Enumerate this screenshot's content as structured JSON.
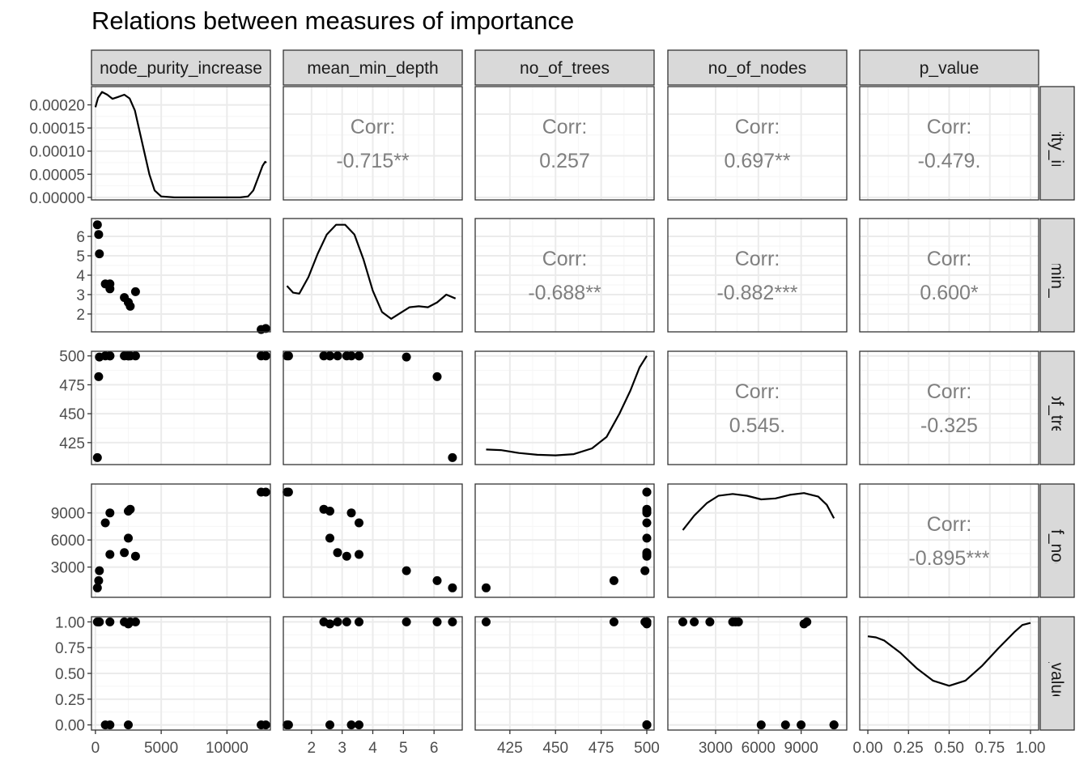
{
  "title": "Relations between measures of importance",
  "chart_data": {
    "type": "scatter",
    "variables": [
      "node_purity_increase",
      "mean_min_depth",
      "no_of_trees",
      "no_of_nodes",
      "p_value"
    ],
    "row_strip_labels": [
      "e_purity_incre",
      "ean_min_dep",
      "no_of_trees",
      "no_of_nodes",
      "p_value"
    ],
    "axes": {
      "node_purity_increase": {
        "range": [
          -300,
          13300
        ],
        "ticks": [
          0,
          5000,
          10000
        ],
        "tick_labels": [
          "0",
          "5000",
          "10000"
        ]
      },
      "mean_min_depth": {
        "range": [
          1.08,
          6.92
        ],
        "ticks": [
          2,
          3,
          4,
          5,
          6
        ],
        "tick_labels": [
          "2",
          "3",
          "4",
          "5",
          "6"
        ]
      },
      "no_of_trees": {
        "range": [
          406,
          504
        ],
        "ticks": [
          425,
          450,
          475,
          500
        ],
        "tick_labels": [
          "425",
          "450",
          "475",
          "500"
        ]
      },
      "no_of_nodes": {
        "range": [
          -350,
          12200
        ],
        "ticks": [
          3000,
          6000,
          9000
        ],
        "tick_labels": [
          "3000",
          "6000",
          "9000"
        ]
      },
      "p_value": {
        "range": [
          -0.05,
          1.05
        ],
        "ticks": [
          0,
          0.25,
          0.5,
          0.75,
          1.0
        ],
        "tick_labels": [
          "0.00",
          "0.25",
          "0.50",
          "0.75",
          "1.00"
        ]
      }
    },
    "density_axis": {
      "range": [
        -5.5e-06,
        0.0002395
      ],
      "ticks": [
        0,
        5e-05,
        0.0001,
        0.00015,
        0.0002
      ],
      "tick_labels": [
        "0.00000",
        "0.00005",
        "0.00010",
        "0.00015",
        "0.00020"
      ]
    },
    "observations": [
      {
        "node_purity_increase": 12600,
        "mean_min_depth": 1.2,
        "no_of_trees": 500,
        "no_of_nodes": 11300,
        "p_value": 0.0
      },
      {
        "node_purity_increase": 12950,
        "mean_min_depth": 1.25,
        "no_of_trees": 500,
        "no_of_nodes": 11300,
        "p_value": 0.0
      },
      {
        "node_purity_increase": 2650,
        "mean_min_depth": 2.4,
        "no_of_trees": 500,
        "no_of_nodes": 9400,
        "p_value": 1.0
      },
      {
        "node_purity_increase": 2500,
        "mean_min_depth": 2.6,
        "no_of_trees": 500,
        "no_of_nodes": 9200,
        "p_value": 0.98
      },
      {
        "node_purity_increase": 2500,
        "mean_min_depth": 2.6,
        "no_of_trees": 500,
        "no_of_nodes": 6200,
        "p_value": 0.0
      },
      {
        "node_purity_increase": 1100,
        "mean_min_depth": 3.3,
        "no_of_trees": 500,
        "no_of_nodes": 9000,
        "p_value": 0.0
      },
      {
        "node_purity_increase": 750,
        "mean_min_depth": 3.55,
        "no_of_trees": 500,
        "no_of_nodes": 7900,
        "p_value": 0.0
      },
      {
        "node_purity_increase": 2200,
        "mean_min_depth": 2.85,
        "no_of_trees": 500,
        "no_of_nodes": 4600,
        "p_value": 1.0
      },
      {
        "node_purity_increase": 3050,
        "mean_min_depth": 3.15,
        "no_of_trees": 500,
        "no_of_nodes": 4200,
        "p_value": 1.0
      },
      {
        "node_purity_increase": 1100,
        "mean_min_depth": 3.55,
        "no_of_trees": 500,
        "no_of_nodes": 4400,
        "p_value": 1.0
      },
      {
        "node_purity_increase": 300,
        "mean_min_depth": 5.1,
        "no_of_trees": 499,
        "no_of_nodes": 2600,
        "p_value": 1.0
      },
      {
        "node_purity_increase": 250,
        "mean_min_depth": 6.1,
        "no_of_trees": 482,
        "no_of_nodes": 1500,
        "p_value": 1.0
      },
      {
        "node_purity_increase": 150,
        "mean_min_depth": 6.6,
        "no_of_trees": 412,
        "no_of_nodes": 700,
        "p_value": 1.0
      }
    ],
    "densities": {
      "node_purity_increase": [
        [
          0,
          0.000195
        ],
        [
          200,
          0.000215
        ],
        [
          500,
          0.000228
        ],
        [
          900,
          0.000222
        ],
        [
          1300,
          0.000213
        ],
        [
          1700,
          0.000217
        ],
        [
          2200,
          0.000222
        ],
        [
          2600,
          0.000214
        ],
        [
          3000,
          0.000188
        ],
        [
          3300,
          0.00015
        ],
        [
          3700,
          0.0001
        ],
        [
          4100,
          5e-05
        ],
        [
          4500,
          1.5e-05
        ],
        [
          5000,
          2e-06
        ],
        [
          6000,
          0.0
        ],
        [
          11000,
          0.0
        ],
        [
          11600,
          2e-06
        ],
        [
          12000,
          1.5e-05
        ],
        [
          12400,
          4.5e-05
        ],
        [
          12700,
          6.8e-05
        ],
        [
          12900,
          7.7e-05
        ],
        [
          13000,
          7.5e-05
        ]
      ],
      "mean_min_depth": [
        [
          1.2,
          3.45
        ],
        [
          1.4,
          3.1
        ],
        [
          1.6,
          3.05
        ],
        [
          1.9,
          3.9
        ],
        [
          2.2,
          5.1
        ],
        [
          2.5,
          6.1
        ],
        [
          2.8,
          6.6
        ],
        [
          3.1,
          6.6
        ],
        [
          3.4,
          6.1
        ],
        [
          3.7,
          4.8
        ],
        [
          4.0,
          3.2
        ],
        [
          4.3,
          2.1
        ],
        [
          4.6,
          1.75
        ],
        [
          4.9,
          2.05
        ],
        [
          5.2,
          2.35
        ],
        [
          5.5,
          2.4
        ],
        [
          5.8,
          2.35
        ],
        [
          6.1,
          2.6
        ],
        [
          6.4,
          3.0
        ],
        [
          6.7,
          2.8
        ]
      ],
      "no_of_trees": [
        [
          412,
          419
        ],
        [
          420,
          418.5
        ],
        [
          430,
          416
        ],
        [
          440,
          414.5
        ],
        [
          450,
          414
        ],
        [
          460,
          415
        ],
        [
          470,
          420
        ],
        [
          478,
          430
        ],
        [
          485,
          450
        ],
        [
          491,
          470
        ],
        [
          496,
          490
        ],
        [
          500,
          500
        ]
      ],
      "no_of_nodes": [
        [
          700,
          7100
        ],
        [
          1500,
          8700
        ],
        [
          2400,
          10100
        ],
        [
          3200,
          10900
        ],
        [
          4200,
          11100
        ],
        [
          5200,
          10900
        ],
        [
          6200,
          10500
        ],
        [
          7200,
          10600
        ],
        [
          8200,
          11000
        ],
        [
          9200,
          11200
        ],
        [
          10200,
          10800
        ],
        [
          10800,
          9900
        ],
        [
          11300,
          8400
        ]
      ],
      "p_value": [
        [
          0.0,
          0.86
        ],
        [
          0.05,
          0.85
        ],
        [
          0.1,
          0.82
        ],
        [
          0.2,
          0.7
        ],
        [
          0.3,
          0.55
        ],
        [
          0.4,
          0.43
        ],
        [
          0.5,
          0.38
        ],
        [
          0.6,
          0.43
        ],
        [
          0.7,
          0.57
        ],
        [
          0.8,
          0.74
        ],
        [
          0.9,
          0.9
        ],
        [
          0.95,
          0.97
        ],
        [
          1.0,
          0.99
        ]
      ]
    },
    "correlations": [
      {
        "row": 0,
        "col": 1,
        "label": "Corr:",
        "value": "-0.715**"
      },
      {
        "row": 0,
        "col": 2,
        "label": "Corr:",
        "value": "0.257"
      },
      {
        "row": 0,
        "col": 3,
        "label": "Corr:",
        "value": "0.697**"
      },
      {
        "row": 0,
        "col": 4,
        "label": "Corr:",
        "value": "-0.479."
      },
      {
        "row": 1,
        "col": 2,
        "label": "Corr:",
        "value": "-0.688**"
      },
      {
        "row": 1,
        "col": 3,
        "label": "Corr:",
        "value": "-0.882***"
      },
      {
        "row": 1,
        "col": 4,
        "label": "Corr:",
        "value": "0.600*"
      },
      {
        "row": 2,
        "col": 3,
        "label": "Corr:",
        "value": "0.545."
      },
      {
        "row": 2,
        "col": 4,
        "label": "Corr:",
        "value": "-0.325"
      },
      {
        "row": 3,
        "col": 4,
        "label": "Corr:",
        "value": "-0.895***"
      }
    ],
    "grid": true,
    "colors": {
      "strip_bg": "#d9d9d9",
      "panel_border": "#333333",
      "grid_major": "#ebebeb",
      "grid_minor": "#f5f5f5",
      "point": "#000000",
      "corr_text": "#7f7f7f",
      "axis_text": "#4d4d4d"
    }
  }
}
